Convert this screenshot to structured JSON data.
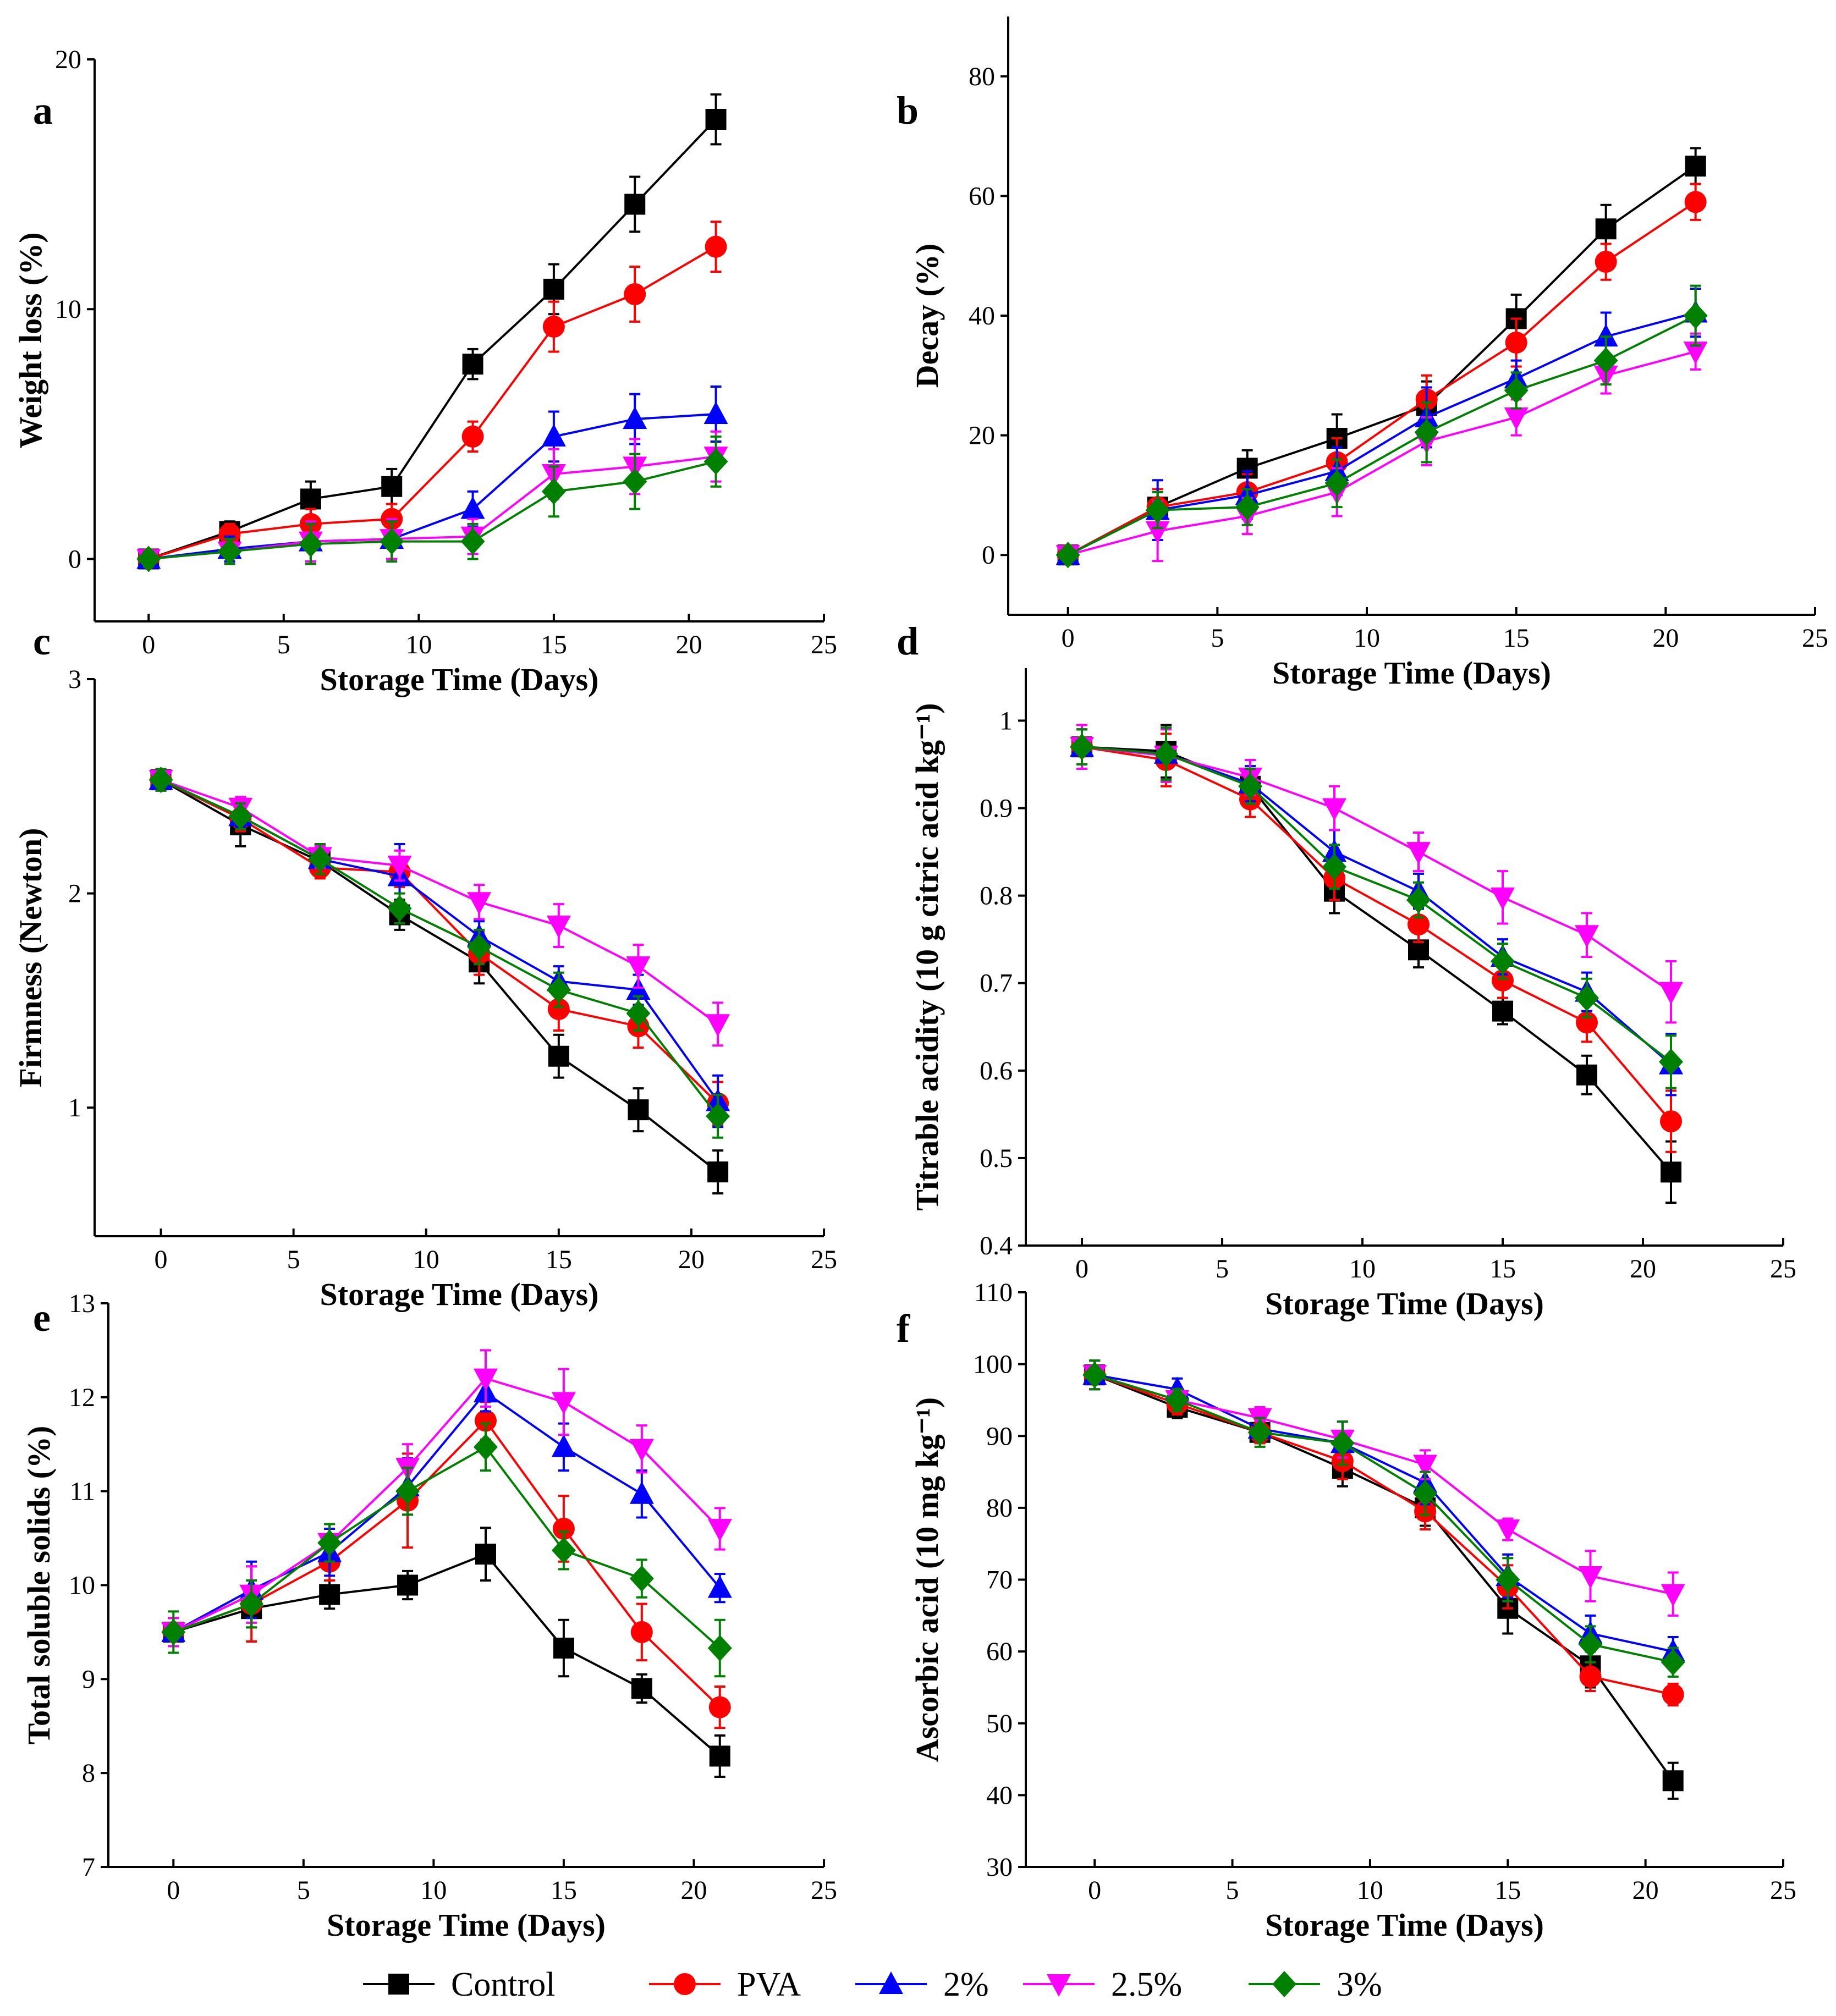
{
  "series_colors": {
    "Control": "#000000",
    "PVA": "#ff0000",
    "2%": "#0000ff",
    "2.5%": "#ff00ff",
    "3%": "#008000"
  },
  "series_markers": {
    "Control": "square",
    "PVA": "circle",
    "2%": "triangle-up",
    "2.5%": "triangle-down",
    "3%": "diamond"
  },
  "legend": {
    "entries": [
      "Control",
      "PVA",
      "2%",
      "2.5%",
      "3%"
    ]
  },
  "chart_data": [
    {
      "id": "a",
      "type": "line",
      "panel_letter": "a",
      "xlabel": "Storage Time (Days)",
      "ylabel": "Weight loss (%)",
      "xlim": [
        -2,
        25
      ],
      "ylim": [
        -2.5,
        20
      ],
      "xticks": [
        0,
        5,
        10,
        15,
        20,
        25
      ],
      "yticks": [
        0,
        10,
        20
      ],
      "x": [
        0,
        3,
        6,
        9,
        12,
        15,
        18,
        21
      ],
      "series": [
        {
          "name": "Control",
          "values": [
            0,
            1.1,
            2.4,
            2.9,
            7.8,
            10.8,
            14.2,
            17.6
          ],
          "errors": [
            0.3,
            0.4,
            0.7,
            0.7,
            0.6,
            1.0,
            1.1,
            1.0
          ]
        },
        {
          "name": "PVA",
          "values": [
            0,
            1.0,
            1.4,
            1.6,
            4.9,
            9.3,
            10.6,
            12.5
          ],
          "errors": [
            0.3,
            0.4,
            0.6,
            0.6,
            0.6,
            1.0,
            1.1,
            1.0
          ]
        },
        {
          "name": "2%",
          "values": [
            0,
            0.4,
            0.7,
            0.8,
            2.0,
            4.9,
            5.6,
            5.8
          ],
          "errors": [
            0.3,
            0.5,
            0.8,
            0.8,
            0.7,
            1.0,
            1.0,
            1.1
          ]
        },
        {
          "name": "2.5%",
          "values": [
            0,
            0.3,
            0.7,
            0.8,
            0.9,
            3.4,
            3.7,
            4.1
          ],
          "errors": [
            0.3,
            0.5,
            0.8,
            0.8,
            0.7,
            1.0,
            1.1,
            1.0
          ]
        },
        {
          "name": "3%",
          "values": [
            0,
            0.3,
            0.6,
            0.7,
            0.7,
            2.7,
            3.1,
            3.9
          ],
          "errors": [
            0.3,
            0.5,
            0.8,
            0.8,
            0.7,
            1.0,
            1.1,
            1.0
          ]
        }
      ]
    },
    {
      "id": "b",
      "type": "line",
      "panel_letter": "b",
      "xlabel": "Storage Time (Days)",
      "ylabel": "Decay (%)",
      "xlim": [
        -2,
        25
      ],
      "ylim": [
        -10,
        90
      ],
      "xticks": [
        0,
        5,
        10,
        15,
        20,
        25
      ],
      "yticks": [
        0,
        20,
        40,
        60,
        80
      ],
      "x": [
        0,
        3,
        6,
        9,
        12,
        15,
        18,
        21
      ],
      "series": [
        {
          "name": "Control",
          "values": [
            0,
            8,
            14.5,
            19.5,
            25,
            39.5,
            54.5,
            65
          ],
          "errors": [
            1,
            3,
            3,
            4,
            4,
            4,
            4,
            3
          ]
        },
        {
          "name": "PVA",
          "values": [
            0,
            8,
            10.5,
            15.5,
            26,
            35.5,
            49,
            59
          ],
          "errors": [
            1,
            3,
            3,
            4,
            4,
            4,
            3,
            3
          ]
        },
        {
          "name": "2%",
          "values": [
            0,
            7.5,
            10,
            14,
            23,
            29.5,
            36.5,
            40.5
          ],
          "errors": [
            1,
            5,
            4,
            4,
            5,
            3,
            4,
            4
          ]
        },
        {
          "name": "2.5%",
          "values": [
            0,
            4,
            6.5,
            10.5,
            19,
            23,
            30,
            34
          ],
          "errors": [
            1,
            5,
            3,
            4,
            4,
            3,
            3,
            3
          ]
        },
        {
          "name": "3%",
          "values": [
            0,
            7.5,
            8,
            12,
            20.5,
            27.5,
            32.5,
            40
          ],
          "errors": [
            1,
            3,
            3,
            4,
            5,
            3,
            4,
            5
          ]
        }
      ]
    },
    {
      "id": "c",
      "type": "line",
      "panel_letter": "c",
      "xlabel": "Storage Time (Days)",
      "ylabel": "Firmness (Newton)",
      "xlim": [
        -2.5,
        25
      ],
      "ylim": [
        0.4,
        3.0
      ],
      "xticks": [
        0,
        5,
        10,
        15,
        20,
        25
      ],
      "yticks": [
        1,
        2,
        3
      ],
      "x": [
        0,
        3,
        6,
        9,
        12,
        15,
        18,
        21
      ],
      "series": [
        {
          "name": "Control",
          "values": [
            2.53,
            2.32,
            2.15,
            1.9,
            1.68,
            1.24,
            0.99,
            0.7
          ],
          "errors": [
            0.05,
            0.1,
            0.07,
            0.07,
            0.1,
            0.1,
            0.1,
            0.1
          ]
        },
        {
          "name": "PVA",
          "values": [
            2.53,
            2.35,
            2.12,
            2.1,
            1.72,
            1.46,
            1.38,
            1.02
          ],
          "errors": [
            0.05,
            0.06,
            0.05,
            0.07,
            0.1,
            0.1,
            0.1,
            0.1
          ]
        },
        {
          "name": "2%",
          "values": [
            2.53,
            2.36,
            2.16,
            2.08,
            1.8,
            1.59,
            1.55,
            1.03
          ],
          "errors": [
            0.05,
            0.05,
            0.07,
            0.15,
            0.07,
            0.07,
            0.07,
            0.12
          ]
        },
        {
          "name": "2.5%",
          "values": [
            2.53,
            2.4,
            2.17,
            2.13,
            1.96,
            1.85,
            1.66,
            1.39
          ],
          "errors": [
            0.05,
            0.05,
            0.05,
            0.07,
            0.08,
            0.1,
            0.1,
            0.1
          ]
        },
        {
          "name": "3%",
          "values": [
            2.53,
            2.36,
            2.16,
            1.93,
            1.75,
            1.55,
            1.44,
            0.96
          ],
          "errors": [
            0.05,
            0.06,
            0.07,
            0.07,
            0.08,
            0.08,
            0.08,
            0.1
          ]
        }
      ]
    },
    {
      "id": "d",
      "type": "line",
      "panel_letter": "d",
      "xlabel": "Storage Time (Days)",
      "ylabel": "Titrable acidity (10 g citric acid kg⁻¹)",
      "xlim": [
        -2,
        25
      ],
      "ylim": [
        0.4,
        1.06
      ],
      "xticks": [
        0,
        5,
        10,
        15,
        20,
        25
      ],
      "yticks": [
        0.4,
        0.5,
        0.6,
        0.7,
        0.8,
        0.9,
        1.0
      ],
      "x": [
        0,
        3,
        6,
        9,
        12,
        15,
        18,
        21
      ],
      "series": [
        {
          "name": "Control",
          "values": [
            0.97,
            0.965,
            0.925,
            0.805,
            0.738,
            0.668,
            0.595,
            0.484
          ],
          "errors": [
            0.02,
            0.03,
            0.02,
            0.025,
            0.02,
            0.015,
            0.022,
            0.035
          ]
        },
        {
          "name": "PVA",
          "values": [
            0.97,
            0.955,
            0.91,
            0.82,
            0.767,
            0.703,
            0.655,
            0.542
          ],
          "errors": [
            0.02,
            0.03,
            0.02,
            0.025,
            0.02,
            0.02,
            0.022,
            0.035
          ]
        },
        {
          "name": "2%",
          "values": [
            0.97,
            0.962,
            0.928,
            0.85,
            0.805,
            0.73,
            0.69,
            0.607
          ],
          "errors": [
            0.02,
            0.03,
            0.02,
            0.025,
            0.02,
            0.02,
            0.022,
            0.035
          ]
        },
        {
          "name": "2.5%",
          "values": [
            0.97,
            0.96,
            0.935,
            0.9,
            0.85,
            0.798,
            0.755,
            0.69
          ],
          "errors": [
            0.025,
            0.03,
            0.02,
            0.025,
            0.022,
            0.03,
            0.025,
            0.035
          ]
        },
        {
          "name": "3%",
          "values": [
            0.97,
            0.962,
            0.925,
            0.833,
            0.795,
            0.725,
            0.683,
            0.61
          ],
          "errors": [
            0.02,
            0.03,
            0.02,
            0.025,
            0.02,
            0.02,
            0.022,
            0.03
          ]
        }
      ]
    },
    {
      "id": "e",
      "type": "line",
      "panel_letter": "e",
      "xlabel": "Storage Time (Days)",
      "ylabel": "Total soluble solids (%)",
      "xlim": [
        -2.5,
        25
      ],
      "ylim": [
        7,
        13
      ],
      "xticks": [
        0,
        5,
        10,
        15,
        20,
        25
      ],
      "yticks": [
        7,
        8,
        9,
        10,
        11,
        12,
        13
      ],
      "x": [
        0,
        3,
        6,
        9,
        12,
        15,
        18,
        21
      ],
      "series": [
        {
          "name": "Control",
          "values": [
            9.5,
            9.75,
            9.9,
            10.0,
            10.33,
            9.33,
            8.9,
            8.18
          ],
          "errors": [
            0.15,
            0.2,
            0.15,
            0.15,
            0.28,
            0.3,
            0.15,
            0.22
          ]
        },
        {
          "name": "PVA",
          "values": [
            9.5,
            9.8,
            10.25,
            10.9,
            11.75,
            10.6,
            9.5,
            8.7
          ],
          "errors": [
            0.15,
            0.4,
            0.2,
            0.5,
            0.2,
            0.35,
            0.3,
            0.22
          ]
        },
        {
          "name": "2%",
          "values": [
            9.5,
            9.95,
            10.35,
            11.05,
            12.05,
            11.47,
            10.97,
            9.97
          ],
          "errors": [
            0.15,
            0.3,
            0.25,
            0.3,
            0.2,
            0.25,
            0.25,
            0.15
          ]
        },
        {
          "name": "2.5%",
          "values": [
            9.5,
            9.9,
            10.45,
            11.25,
            12.2,
            11.95,
            11.45,
            10.6
          ],
          "errors": [
            0.15,
            0.3,
            0.2,
            0.25,
            0.3,
            0.35,
            0.25,
            0.22
          ]
        },
        {
          "name": "3%",
          "values": [
            9.5,
            9.8,
            10.45,
            11.0,
            11.47,
            10.37,
            10.07,
            9.33
          ],
          "errors": [
            0.22,
            0.25,
            0.2,
            0.25,
            0.25,
            0.2,
            0.2,
            0.3
          ]
        }
      ]
    },
    {
      "id": "f",
      "type": "line",
      "panel_letter": "f",
      "xlabel": "Storage Time (Days)",
      "ylabel": "Ascorbic acid (10 mg kg⁻¹)",
      "xlim": [
        -2.5,
        25
      ],
      "ylim": [
        30,
        110
      ],
      "xticks": [
        0,
        5,
        10,
        15,
        20,
        25
      ],
      "yticks": [
        30,
        40,
        50,
        60,
        70,
        80,
        90,
        100,
        110
      ],
      "x": [
        0,
        3,
        6,
        9,
        12,
        15,
        18,
        21
      ],
      "series": [
        {
          "name": "Control",
          "values": [
            98.5,
            94,
            90.5,
            85.5,
            80,
            66,
            58,
            42
          ],
          "errors": [
            2,
            1.5,
            1.5,
            2.5,
            2.5,
            3.5,
            3,
            2.5
          ]
        },
        {
          "name": "PVA",
          "values": [
            98.5,
            94.5,
            90.5,
            86.5,
            79.5,
            69,
            56.5,
            54
          ],
          "errors": [
            2,
            1.5,
            1.5,
            2.5,
            2.5,
            3,
            2,
            1.5
          ]
        },
        {
          "name": "2%",
          "values": [
            98.5,
            96.5,
            91,
            89,
            83.5,
            70.5,
            62.5,
            60
          ],
          "errors": [
            2,
            1.5,
            1.5,
            3,
            3,
            3,
            2.5,
            2
          ]
        },
        {
          "name": "2.5%",
          "values": [
            98.5,
            95,
            92.5,
            89.5,
            86,
            77,
            70.5,
            68
          ],
          "errors": [
            2,
            1.5,
            1.5,
            2.5,
            2,
            1.5,
            3.5,
            3
          ]
        },
        {
          "name": "3%",
          "values": [
            98.5,
            95,
            90.5,
            89,
            82,
            70,
            61,
            58.5
          ],
          "errors": [
            2,
            1.5,
            2,
            3,
            3,
            3,
            2.5,
            2
          ]
        }
      ]
    }
  ]
}
